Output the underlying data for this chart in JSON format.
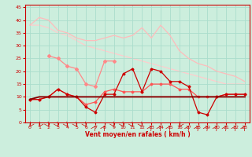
{
  "xlabel": "Vent moyen/en rafales ( km/h )",
  "bg_color": "#cceedd",
  "grid_color": "#aaddcc",
  "xlim": [
    0,
    23
  ],
  "ylim": [
    0,
    46
  ],
  "yticks": [
    0,
    5,
    10,
    15,
    20,
    25,
    30,
    35,
    40,
    45
  ],
  "xticks": [
    0,
    1,
    2,
    3,
    4,
    5,
    6,
    7,
    8,
    9,
    10,
    11,
    12,
    13,
    14,
    15,
    16,
    17,
    18,
    19,
    20,
    21,
    22,
    23
  ],
  "line1_color": "#ffbbbb",
  "line1_y": [
    38,
    41,
    40,
    36,
    35,
    33,
    32,
    32,
    33,
    34,
    33,
    34,
    37,
    33,
    38,
    34,
    28,
    25,
    23,
    22,
    20,
    19,
    18,
    16
  ],
  "line2_color": "#ffcccc",
  "line2_y": [
    38,
    38,
    37,
    35,
    34,
    32,
    30,
    29,
    28,
    27,
    26,
    25,
    24,
    23,
    22,
    21,
    20,
    19,
    18,
    17,
    16,
    15,
    15,
    15
  ],
  "line3_color": "#ff8888",
  "line3_y": [
    null,
    null,
    26,
    25,
    22,
    21,
    15,
    14,
    24,
    24,
    null,
    null,
    null,
    null,
    null,
    null,
    null,
    null,
    null,
    null,
    null,
    null,
    null,
    null
  ],
  "line4_color": "#ff5555",
  "line4_y": [
    9,
    9,
    10,
    13,
    11,
    10,
    7,
    8,
    12,
    13,
    12,
    12,
    12,
    15,
    15,
    15,
    13,
    13,
    10,
    10,
    10,
    11,
    11,
    11
  ],
  "line5_color": "#cc0000",
  "line5_y": [
    9,
    9,
    10,
    13,
    11,
    10,
    6,
    4,
    11,
    11,
    19,
    21,
    12,
    21,
    20,
    16,
    16,
    14,
    4,
    3,
    10,
    11,
    11,
    11
  ],
  "line6_color": "#880000",
  "line6_y": [
    9,
    10,
    10,
    10,
    10,
    10,
    10,
    10,
    10,
    10,
    10,
    10,
    10,
    10,
    10,
    10,
    10,
    10,
    10,
    10,
    10,
    10,
    10,
    10
  ],
  "tick_color": "#cc0000",
  "label_color": "#cc0000",
  "spine_color": "#cc0000"
}
